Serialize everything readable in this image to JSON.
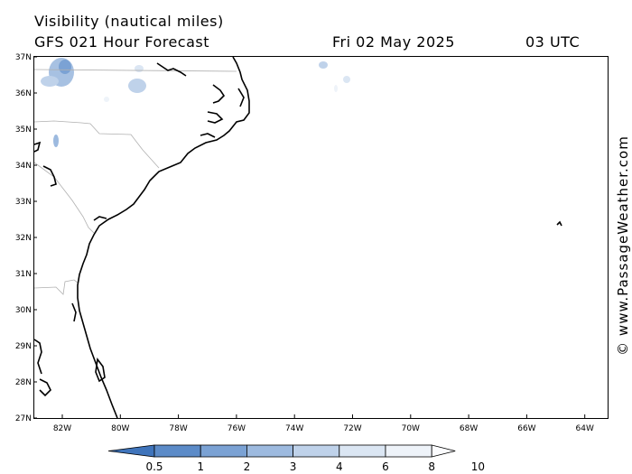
{
  "header": {
    "title": "Visibility (nautical miles)",
    "subtitle": "GFS 021 Hour Forecast",
    "date": "Fri 02 May 2025",
    "time": "03 UTC"
  },
  "watermark": "© www.PassageWeather.com",
  "map": {
    "lat_labels": [
      "37N",
      "36N",
      "35N",
      "34N",
      "33N",
      "32N",
      "31N",
      "30N",
      "29N",
      "28N",
      "27N"
    ],
    "lon_labels": [
      "82W",
      "80W",
      "78W",
      "76W",
      "74W",
      "72W",
      "70W",
      "68W",
      "66W",
      "64W"
    ],
    "lat_range": [
      27,
      37
    ],
    "lon_range": [
      -83,
      -62.8
    ]
  },
  "legend": {
    "labels": [
      "0.5",
      "1",
      "2",
      "3",
      "4",
      "6",
      "8",
      "10"
    ],
    "colors": [
      "#3f74bb",
      "#5c8bc8",
      "#7ba2d4",
      "#9dbadf",
      "#bfd2ea",
      "#dbe6f3",
      "#eef3f9",
      "#fbfcfe"
    ]
  }
}
